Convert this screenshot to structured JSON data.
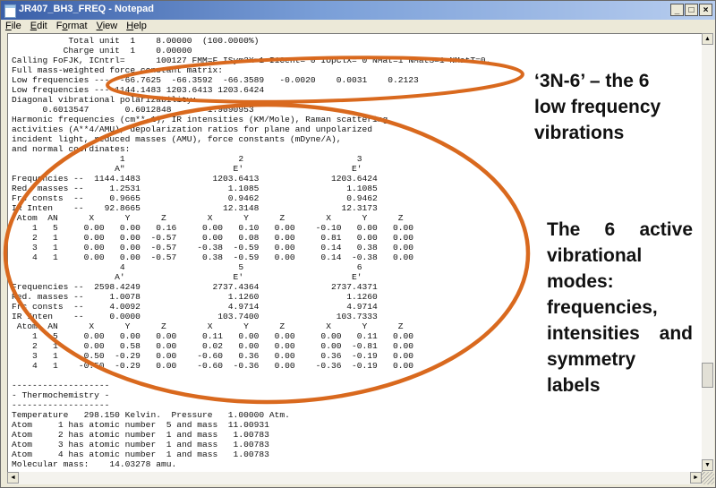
{
  "window": {
    "title": "JR407_BH3_FREQ - Notepad",
    "buttons": [
      "_",
      "□",
      "×"
    ]
  },
  "menu": [
    {
      "key": "F",
      "rest": "ile"
    },
    {
      "key": "E",
      "rest": "dit"
    },
    {
      "pre": "F",
      "key": "o",
      "rest": "rmat"
    },
    {
      "key": "V",
      "rest": "iew"
    },
    {
      "key": "H",
      "rest": "elp"
    }
  ],
  "editor": {
    "lines": [
      "           Total unit  1    8.00000  (100.0000%)",
      "          Charge unit  1    0.00000",
      "Calling FoFJK, ICntrl=      100127 FMM=F ISym2X=1 I1Cent= 0 IOpClX= 0 NMat=1 NMatS=1 NMatT=0.",
      "Full mass-weighted force constant matrix:",
      "Low frequencies ---  -66.7625  -66.3592  -66.3589   -0.0020    0.0031    0.2123",
      "Low frequencies --- 1144.1483 1203.6413 1203.6424",
      "Diagonal vibrational polarizability:",
      "      0.6013547       0.6012848       1.9090953",
      "Harmonic frequencies (cm**-1), IR intensities (KM/Mole), Raman scattering",
      "activities (A**4/AMU), depolarization ratios for plane and unpolarized",
      "incident light, reduced masses (AMU), force constants (mDyne/A),",
      "and normal coordinates:",
      "                     1                      2                      3",
      "                    A\"                     E'                     E'",
      "Frequencies --  1144.1483              1203.6413              1203.6424",
      "Red. masses --     1.2531                 1.1085                 1.1085",
      "Frc consts  --     0.9665                 0.9462                 0.9462",
      "IR Inten    --    92.8665                12.3148                12.3173",
      " Atom  AN      X      Y      Z        X      Y      Z        X      Y      Z",
      "    1   5     0.00   0.00   0.16     0.00   0.10   0.00    -0.10   0.00   0.00",
      "    2   1     0.00   0.00  -0.57     0.00   0.08   0.00     0.81   0.00   0.00",
      "    3   1     0.00   0.00  -0.57    -0.38  -0.59   0.00     0.14   0.38   0.00",
      "    4   1     0.00   0.00  -0.57     0.38  -0.59   0.00     0.14  -0.38   0.00",
      "                     4                      5                      6",
      "                    A'                     E'                     E'",
      "Frequencies --  2598.4249              2737.4364              2737.4371",
      "Red. masses --     1.0078                 1.1260                 1.1260",
      "Frc consts  --     4.0092                 4.9714                 4.9714",
      "IR Inten    --     0.0000               103.7400               103.7333",
      " Atom  AN      X      Y      Z        X      Y      Z        X      Y      Z",
      "    1   5     0.00   0.00   0.00     0.11   0.00   0.00     0.00   0.11   0.00",
      "    2   1     0.00   0.58   0.00     0.02   0.00   0.00     0.00  -0.81   0.00",
      "    3   1     0.50  -0.29   0.00    -0.60   0.36   0.00     0.36  -0.19   0.00",
      "    4   1    -0.50  -0.29   0.00    -0.60  -0.36   0.00    -0.36  -0.19   0.00",
      "",
      "-------------------",
      "- Thermochemistry -",
      "-------------------",
      "Temperature   298.150 Kelvin.  Pressure   1.00000 Atm.",
      "Atom     1 has atomic number  5 and mass  11.00931",
      "Atom     2 has atomic number  1 and mass   1.00783",
      "Atom     3 has atomic number  1 and mass   1.00783",
      "Atom     4 has atomic number  1 and mass   1.00783",
      "Molecular mass:    14.03278 amu."
    ]
  },
  "annotations": {
    "color": "#d9691e",
    "callout_low": [
      "‘3N-6’ – the 6",
      "low frequency",
      "vibrations"
    ],
    "callout_active": [
      "The 6 active",
      "vibrational",
      "modes:",
      "frequencies,",
      "intensities and",
      "symmetry",
      "labels"
    ]
  },
  "scrollbar": {
    "up": "▲",
    "down": "▼",
    "left": "◄",
    "right": "►"
  }
}
